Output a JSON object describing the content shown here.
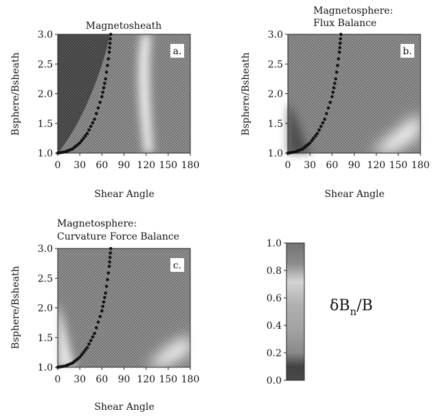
{
  "chart_data": [
    {
      "type": "heatmap",
      "panel": "a",
      "title_lines": [
        "Magnetosheath"
      ],
      "panel_label": "a.",
      "xlabel": "Shear Angle",
      "ylabel": "Bsphere/Bsheath",
      "xlim": [
        0,
        180
      ],
      "ylim": [
        1.0,
        3.0
      ],
      "xticks": [
        "0",
        "30",
        "60",
        "90",
        "120",
        "150",
        "180"
      ],
      "yticks": [
        "1.0",
        "1.5",
        "2.0",
        "2.5",
        "3.0"
      ],
      "dots_curve": {
        "x": [
          0,
          10,
          20,
          30,
          40,
          50,
          60,
          65,
          70,
          72
        ],
        "y": [
          1.0,
          1.02,
          1.07,
          1.17,
          1.33,
          1.57,
          1.95,
          2.25,
          2.7,
          3.0
        ]
      }
    },
    {
      "type": "heatmap",
      "panel": "b",
      "title_lines": [
        "Magnetosphere:",
        "Flux Balance"
      ],
      "panel_label": "b.",
      "xlabel": "Shear Angle",
      "ylabel": "Bsphere/Bsheath",
      "xlim": [
        0,
        180
      ],
      "ylim": [
        1.0,
        3.0
      ],
      "xticks": [
        "0",
        "30",
        "60",
        "90",
        "120",
        "150",
        "180"
      ],
      "yticks": [
        "1.0",
        "1.5",
        "2.0",
        "2.5",
        "3.0"
      ],
      "dots_curve": {
        "x": [
          0,
          10,
          20,
          30,
          40,
          50,
          60,
          65,
          70,
          72
        ],
        "y": [
          1.0,
          1.02,
          1.07,
          1.17,
          1.33,
          1.57,
          1.95,
          2.25,
          2.7,
          3.0
        ]
      }
    },
    {
      "type": "heatmap",
      "panel": "c",
      "title_lines": [
        "Magnetosphere:",
        "Curvature Force Balance"
      ],
      "panel_label": "c.",
      "xlabel": "Shear Angle",
      "ylabel": "Bsphere/Bsheath",
      "xlim": [
        0,
        180
      ],
      "ylim": [
        1.0,
        3.0
      ],
      "xticks": [
        "0",
        "30",
        "60",
        "90",
        "120",
        "150",
        "180"
      ],
      "yticks": [
        "1.0",
        "1.5",
        "2.0",
        "2.5",
        "3.0"
      ],
      "dots_curve": {
        "x": [
          0,
          10,
          20,
          30,
          40,
          50,
          60,
          65,
          70,
          72
        ],
        "y": [
          1.0,
          1.02,
          1.07,
          1.17,
          1.33,
          1.57,
          1.95,
          2.25,
          2.7,
          3.0
        ]
      }
    }
  ],
  "colorbar": {
    "label": "δBn/B",
    "label_main": "δB",
    "label_sub": "n",
    "label_tail": "/B",
    "range": [
      0.0,
      1.0
    ],
    "ticks": [
      "0.0",
      "0.2",
      "0.4",
      "0.6",
      "0.8",
      "1.0"
    ]
  }
}
